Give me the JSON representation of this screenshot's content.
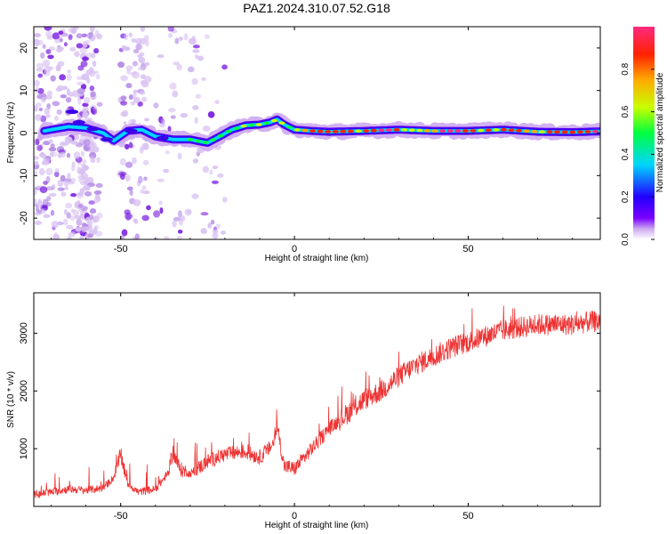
{
  "figure_title": "PAZ1.2024.310.07.52.G18",
  "chart_data": [
    {
      "type": "heatmap",
      "xlabel": "Height of straight line (km)",
      "ylabel": "Frequency (Hz)",
      "xlim": [
        -75,
        88
      ],
      "ylim": [
        -25,
        25
      ],
      "x_ticks": [
        -50,
        0,
        50
      ],
      "y_ticks": [
        -20,
        -10,
        0,
        10,
        20
      ],
      "colorbar": {
        "label": "Normalized spectral amplitude",
        "range": [
          0,
          1
        ],
        "ticks": [
          "0.0",
          "0.2",
          "0.4",
          "0.6",
          "0.8"
        ],
        "colormap": [
          "#ffffff",
          "#cda8f0",
          "#7a00ff",
          "#2200ff",
          "#00d5ff",
          "#00ff40",
          "#c8ff00",
          "#ffaa00",
          "#ff2200",
          "#ff2a80"
        ]
      },
      "ridge_frequency": {
        "x": [
          -72,
          -65,
          -60,
          -55,
          -52,
          -48,
          -44,
          -40,
          -35,
          -30,
          -27,
          -25,
          -22,
          -18,
          -14,
          -10,
          -7,
          -5,
          -3,
          0,
          5,
          10,
          20,
          30,
          40,
          50,
          60,
          70,
          80,
          88
        ],
        "y": [
          0.5,
          1.5,
          1.2,
          0.0,
          -1.8,
          0.5,
          0.8,
          -0.8,
          -1.5,
          -1.5,
          -2.0,
          -2.3,
          -1.0,
          0.8,
          1.8,
          2.0,
          2.5,
          3.2,
          2.0,
          0.8,
          0.5,
          0.3,
          0.5,
          0.8,
          0.5,
          0.5,
          0.8,
          0.3,
          0.2,
          0.4
        ]
      }
    },
    {
      "type": "line",
      "xlabel": "Height of straight line (km)",
      "ylabel": "SNR (10 * v/v)",
      "xlim": [
        -75,
        88
      ],
      "ylim": [
        0,
        3700
      ],
      "x_ticks": [
        -50,
        0,
        50
      ],
      "y_ticks": [
        1000,
        2000,
        3000
      ],
      "color": "#ee3333",
      "trend": {
        "x": [
          -75,
          -70,
          -65,
          -60,
          -55,
          -52,
          -50,
          -48,
          -45,
          -40,
          -38,
          -36,
          -35,
          -33,
          -30,
          -25,
          -20,
          -15,
          -12,
          -10,
          -8,
          -6,
          -5,
          -3,
          0,
          5,
          10,
          15,
          20,
          25,
          30,
          35,
          40,
          45,
          50,
          55,
          60,
          65,
          70,
          75,
          80,
          85,
          88
        ],
        "y": [
          200,
          250,
          300,
          280,
          320,
          500,
          900,
          400,
          250,
          300,
          450,
          600,
          950,
          650,
          560,
          780,
          900,
          950,
          900,
          850,
          950,
          1100,
          1400,
          700,
          650,
          1000,
          1350,
          1600,
          1850,
          2000,
          2250,
          2450,
          2600,
          2750,
          2850,
          2950,
          3050,
          3100,
          3150,
          3150,
          3150,
          3200,
          3200
        ]
      }
    }
  ]
}
